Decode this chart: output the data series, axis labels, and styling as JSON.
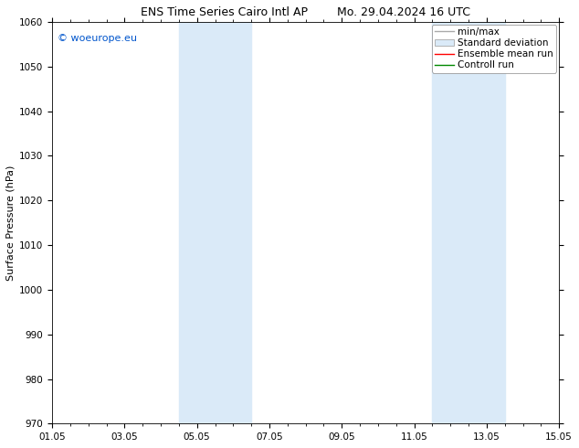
{
  "title_left": "ENS Time Series Cairo Intl AP",
  "title_right": "Mo. 29.04.2024 16 UTC",
  "ylabel": "Surface Pressure (hPa)",
  "ylim": [
    970,
    1060
  ],
  "yticks": [
    970,
    980,
    990,
    1000,
    1010,
    1020,
    1030,
    1040,
    1050,
    1060
  ],
  "xtick_labels": [
    "01.05",
    "03.05",
    "05.05",
    "07.05",
    "09.05",
    "11.05",
    "13.05",
    "15.05"
  ],
  "xtick_positions": [
    0,
    2,
    4,
    6,
    8,
    10,
    12,
    14
  ],
  "xlim": [
    0,
    14
  ],
  "shaded_bands": [
    {
      "x_start": 3.5,
      "x_end": 5.5
    },
    {
      "x_start": 10.5,
      "x_end": 12.5
    }
  ],
  "shade_color": "#daeaf8",
  "shade_alpha": 1.0,
  "background_color": "#ffffff",
  "watermark_text": "© woeurope.eu",
  "watermark_color": "#0055cc",
  "legend_entries": [
    {
      "label": "min/max",
      "color": "#aaaaaa",
      "style": "line",
      "lw": 1.0
    },
    {
      "label": "Standard deviation",
      "color": "#daeaf8",
      "style": "box"
    },
    {
      "label": "Ensemble mean run",
      "color": "#ff0000",
      "style": "line",
      "lw": 1.0
    },
    {
      "label": "Controll run",
      "color": "#008800",
      "style": "line",
      "lw": 1.0
    }
  ],
  "title_fontsize": 9,
  "ylabel_fontsize": 8,
  "tick_fontsize": 7.5,
  "legend_fontsize": 7.5,
  "watermark_fontsize": 8
}
